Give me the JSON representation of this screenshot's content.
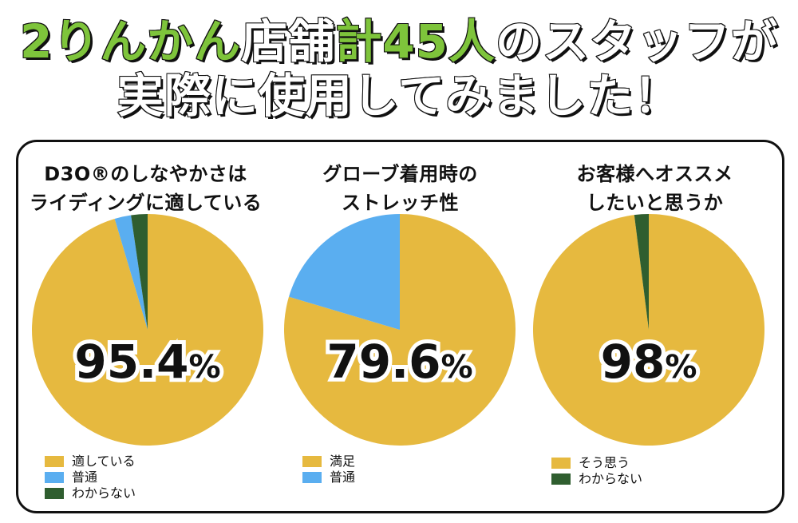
{
  "headline": {
    "line1": [
      {
        "text": "2りんかん",
        "color": "green"
      },
      {
        "text": "店舗",
        "color": "white"
      },
      {
        "text": "計45人",
        "color": "green"
      },
      {
        "text": "のスタッフが",
        "color": "white"
      }
    ],
    "line2": "実際に使用してみました！"
  },
  "colors": {
    "gold": "#e6b93f",
    "blue": "#5aaef0",
    "dark_green": "#2f5e2f",
    "headline_green": "#7ec43b"
  },
  "chart_data": [
    {
      "type": "pie",
      "title_lines": [
        "D3O®のしなやかさは",
        "ライディングに適している"
      ],
      "big_label": "95.4",
      "big_label_unit": "%",
      "slices": [
        {
          "label": "適している",
          "value": 95.4,
          "color": "#e6b93f"
        },
        {
          "label": "普通",
          "value": 2.3,
          "color": "#5aaef0"
        },
        {
          "label": "わからない",
          "value": 2.3,
          "color": "#2f5e2f"
        }
      ]
    },
    {
      "type": "pie",
      "title_lines": [
        "グローブ着用時の",
        "ストレッチ性"
      ],
      "big_label": "79.6",
      "big_label_unit": "%",
      "slices": [
        {
          "label": "満足",
          "value": 79.6,
          "color": "#e6b93f"
        },
        {
          "label": "普通",
          "value": 20.4,
          "color": "#5aaef0"
        }
      ]
    },
    {
      "type": "pie",
      "title_lines": [
        "お客様へオススメ",
        "したいと思うか"
      ],
      "big_label": "98",
      "big_label_unit": "%",
      "slices": [
        {
          "label": "そう思う",
          "value": 98,
          "color": "#e6b93f"
        },
        {
          "label": "わからない",
          "value": 2,
          "color": "#2f5e2f"
        }
      ]
    }
  ]
}
